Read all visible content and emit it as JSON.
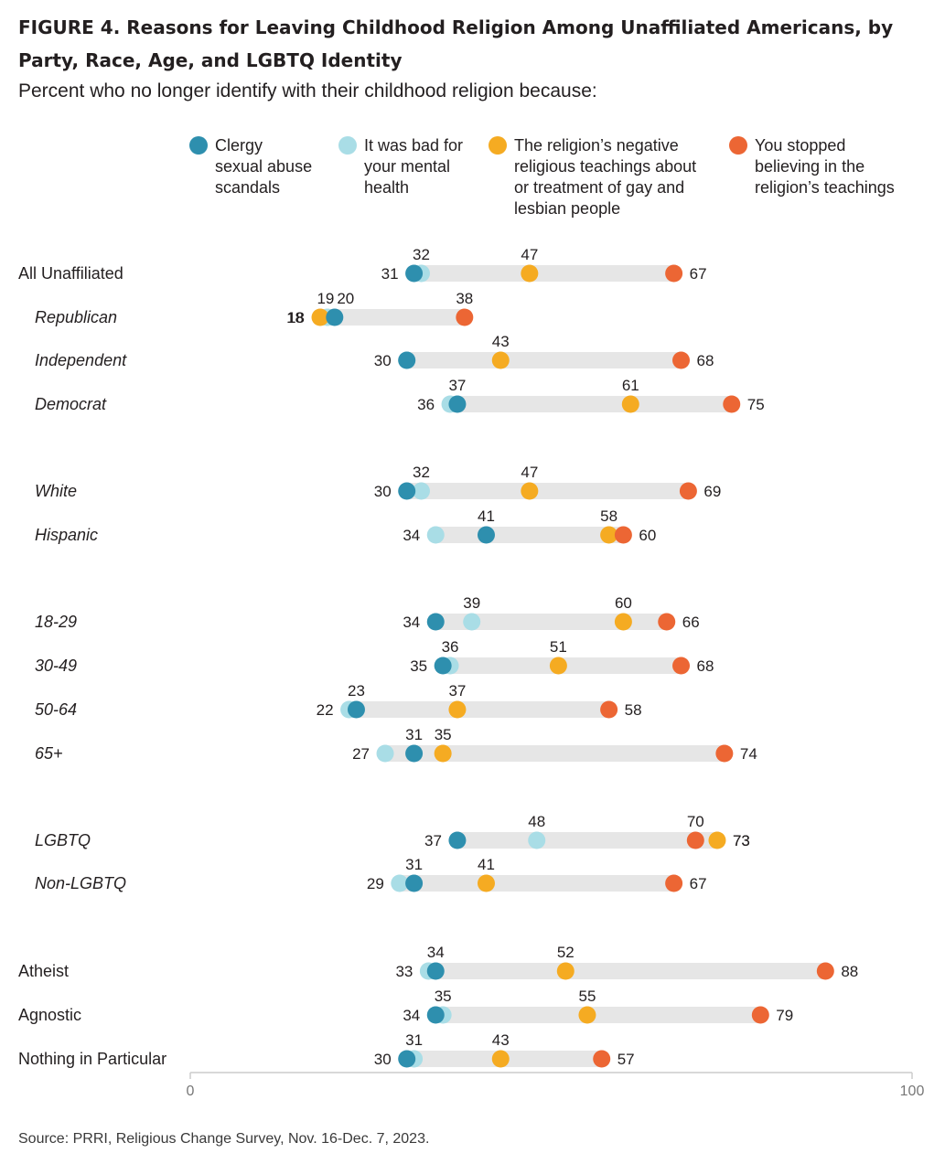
{
  "title": "FIGURE 4. Reasons for Leaving Childhood Religion Among Unaffiliated Americans, by Party, Race, Age, and LGBTQ Identity",
  "subtitle": "Percent who no longer identify with their childhood religion because:",
  "source": "Source: PRRI, Religious Change Survey, Nov. 16-Dec. 7, 2023.",
  "legend": [
    {
      "key": "clergy",
      "label": "Clergy\nsexual abuse\nscandals"
    },
    {
      "key": "mental",
      "label": "It was bad for\nyour mental\nhealth"
    },
    {
      "key": "lgbt",
      "label": "The religion’s negative\nreligious teachings about\nor treatment of gay and\nlesbian people"
    },
    {
      "key": "stopped",
      "label": "You stopped\nbelieving in the\nreligion’s teachings"
    }
  ],
  "colors": {
    "clergy": "#2e8fae",
    "mental": "#a9dde6",
    "lgbt": "#f5ab22",
    "stopped": "#ec6634",
    "track": "#e6e6e6",
    "axis": "#cccccc"
  },
  "chart_data": {
    "type": "dot",
    "xlim": [
      0,
      100
    ],
    "ticks": [
      0,
      100
    ],
    "series": [
      {
        "key": "clergy",
        "name": "Clergy sexual abuse scandals"
      },
      {
        "key": "mental",
        "name": "It was bad for your mental health"
      },
      {
        "key": "lgbt",
        "name": "The religion’s negative religious teachings about or treatment of gay and lesbian people"
      },
      {
        "key": "stopped",
        "name": "You stopped believing in the religion’s teachings"
      }
    ],
    "rows": [
      {
        "label": "All Unaffiliated",
        "italic": false,
        "values": {
          "clergy": 31,
          "mental": 32,
          "lgbt": 47,
          "stopped": 67
        }
      },
      {
        "label": "Republican",
        "italic": true,
        "values": {
          "clergy": 20,
          "mental": 19,
          "lgbt": 18,
          "stopped": 38
        }
      },
      {
        "label": "Independent",
        "italic": true,
        "values": {
          "clergy": 30,
          "mental": 30,
          "lgbt": 43,
          "stopped": 68
        }
      },
      {
        "label": "Democrat",
        "italic": true,
        "values": {
          "clergy": 37,
          "mental": 36,
          "lgbt": 61,
          "stopped": 75
        }
      },
      {
        "label": "White",
        "italic": true,
        "values": {
          "clergy": 30,
          "mental": 32,
          "lgbt": 47,
          "stopped": 69
        }
      },
      {
        "label": "Hispanic",
        "italic": true,
        "values": {
          "clergy": 41,
          "mental": 34,
          "lgbt": 58,
          "stopped": 60
        }
      },
      {
        "label": "18-29",
        "italic": true,
        "values": {
          "clergy": 34,
          "mental": 39,
          "lgbt": 60,
          "stopped": 66
        }
      },
      {
        "label": "30-49",
        "italic": true,
        "values": {
          "clergy": 35,
          "mental": 36,
          "lgbt": 51,
          "stopped": 68
        }
      },
      {
        "label": "50-64",
        "italic": true,
        "values": {
          "clergy": 23,
          "mental": 22,
          "lgbt": 37,
          "stopped": 58
        }
      },
      {
        "label": "65+",
        "italic": true,
        "values": {
          "clergy": 31,
          "mental": 27,
          "lgbt": 35,
          "stopped": 74
        }
      },
      {
        "label": "LGBTQ",
        "italic": true,
        "values": {
          "clergy": 37,
          "mental": 48,
          "lgbt": 73,
          "stopped": 70
        }
      },
      {
        "label": "Non-LGBTQ",
        "italic": true,
        "values": {
          "clergy": 31,
          "mental": 29,
          "lgbt": 41,
          "stopped": 67
        }
      },
      {
        "label": "Atheist",
        "italic": false,
        "values": {
          "clergy": 34,
          "mental": 33,
          "lgbt": 52,
          "stopped": 88
        }
      },
      {
        "label": "Agnostic",
        "italic": false,
        "values": {
          "clergy": 34,
          "mental": 35,
          "lgbt": 55,
          "stopped": 79
        }
      },
      {
        "label": "Nothing in Particular",
        "italic": false,
        "values": {
          "clergy": 30,
          "mental": 31,
          "lgbt": 43,
          "stopped": 57
        }
      }
    ]
  }
}
